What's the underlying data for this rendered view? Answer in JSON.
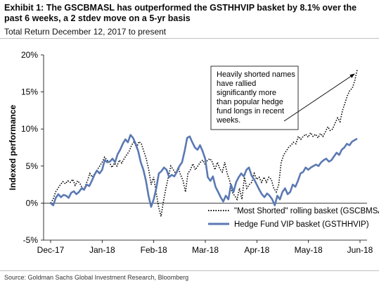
{
  "title": "Exhibit 1: The GSCBMASL has outperformed the GSTHHVIP basket by 8.1% over the past 6 weeks, a 2 stdev move on a 5-yr basis",
  "subtitle": "Total Return December 12, 2017 to present",
  "source": "Source: Goldman Sachs Global Investment Research, Bloomberg",
  "colors": {
    "hedge_fund_series": "#5b79b3",
    "most_shorted_series": "#000000"
  },
  "chart_data": {
    "type": "line",
    "xlabel": "",
    "ylabel": "Indexed performance",
    "x_ticks": [
      "Dec-17",
      "Jan-18",
      "Feb-18",
      "Mar-18",
      "Apr-18",
      "May-18",
      "Jun-18"
    ],
    "y_ticks": [
      "-5%",
      "0%",
      "5%",
      "10%",
      "15%",
      "20%"
    ],
    "ylim": [
      -5,
      20
    ],
    "annotation": "Heavily shorted names have rallied significantly more than popular hedge fund longs in recent weeks.",
    "legend_position": "bottom-right",
    "series": [
      {
        "name": "\"Most Shorted\" rolling basket (GSCBMSAL)",
        "style": "dotted",
        "values": [
          0,
          0.5,
          1.5,
          2.0,
          2.5,
          2.9,
          2.6,
          3.0,
          2.8,
          3.2,
          2.4,
          3.0,
          2.6,
          2.0,
          2.2,
          3.0,
          4.0,
          3.5,
          4.0,
          4.5,
          5.0,
          5.5,
          6.2,
          5.8,
          5.5,
          4.8,
          5.4,
          5.0,
          5.8,
          5.4,
          6.0,
          6.5,
          7.0,
          7.8,
          8.3,
          7.5,
          8.3,
          8.0,
          7.0,
          6.0,
          4.5,
          2.5,
          3.5,
          1.5,
          -0.5,
          -1.8,
          0.2,
          2.0,
          3.5,
          5.0,
          4.5,
          4.0,
          4.8,
          3.8,
          3.0,
          1.5,
          4.0,
          4.5,
          5.3,
          4.5,
          5.0,
          5.5,
          5.8,
          5.2,
          5.8,
          6.0,
          5.5,
          4.5,
          5.5,
          4.6,
          4.2,
          5.5,
          4.0,
          3.0,
          1.5,
          1.0,
          0.5,
          2.0,
          0.5,
          3.5,
          2.0,
          2.5,
          2.8,
          4.0,
          3.2,
          3.5,
          2.8,
          3.5,
          2.8,
          3.5,
          3.2,
          2.0,
          1.5,
          2.5,
          5.5,
          6.5,
          7.0,
          7.5,
          7.8,
          8.2,
          8.0,
          9.0,
          8.6,
          9.0,
          9.3,
          8.9,
          9.5,
          9.0,
          9.3,
          8.8,
          9.4,
          9.0,
          9.6,
          10.3,
          9.8,
          10.0,
          10.8,
          11.5,
          11.0,
          12.5,
          13.5,
          14.5,
          15.2,
          15.5,
          16.5,
          18.0
        ]
      },
      {
        "name": "Hedge Fund VIP basket (GSTHHVIP)",
        "style": "solid",
        "values": [
          0,
          -0.3,
          0.7,
          1.2,
          0.8,
          1.1,
          1.0,
          0.7,
          1.4,
          1.6,
          1.2,
          1.5,
          2.0,
          1.8,
          2.5,
          2.3,
          3.0,
          3.8,
          4.4,
          4.0,
          4.5,
          5.8,
          5.5,
          5.6,
          6.0,
          5.5,
          6.6,
          7.2,
          8.0,
          8.6,
          8.2,
          9.2,
          8.8,
          8.0,
          7.0,
          5.5,
          4.5,
          3.0,
          1.0,
          -0.5,
          0.5,
          2.0,
          4.0,
          4.3,
          4.8,
          4.5,
          3.5,
          3.8,
          3.6,
          4.2,
          5.0,
          5.5,
          7.0,
          8.8,
          9.0,
          8.2,
          7.5,
          7.2,
          7.8,
          7.0,
          6.0,
          3.5,
          3.0,
          3.6,
          2.2,
          1.5,
          0.8,
          0.2,
          1.0,
          0.5,
          2.5,
          1.5,
          2.8,
          3.5,
          4.0,
          3.6,
          4.5,
          4.8,
          3.7,
          3.2,
          2.5,
          1.8,
          1.2,
          0.8,
          1.3,
          1.0,
          0.5,
          -0.3,
          1.0,
          0.5,
          1.5,
          2.0,
          1.2,
          1.5,
          2.5,
          2.2,
          3.0,
          4.0,
          4.2,
          4.8,
          4.5,
          4.8,
          5.0,
          5.2,
          5.0,
          5.5,
          5.8,
          6.0,
          5.6,
          5.8,
          6.3,
          6.8,
          6.5,
          7.2,
          7.5,
          8.0,
          7.8,
          8.3,
          8.5,
          8.7
        ]
      }
    ]
  }
}
